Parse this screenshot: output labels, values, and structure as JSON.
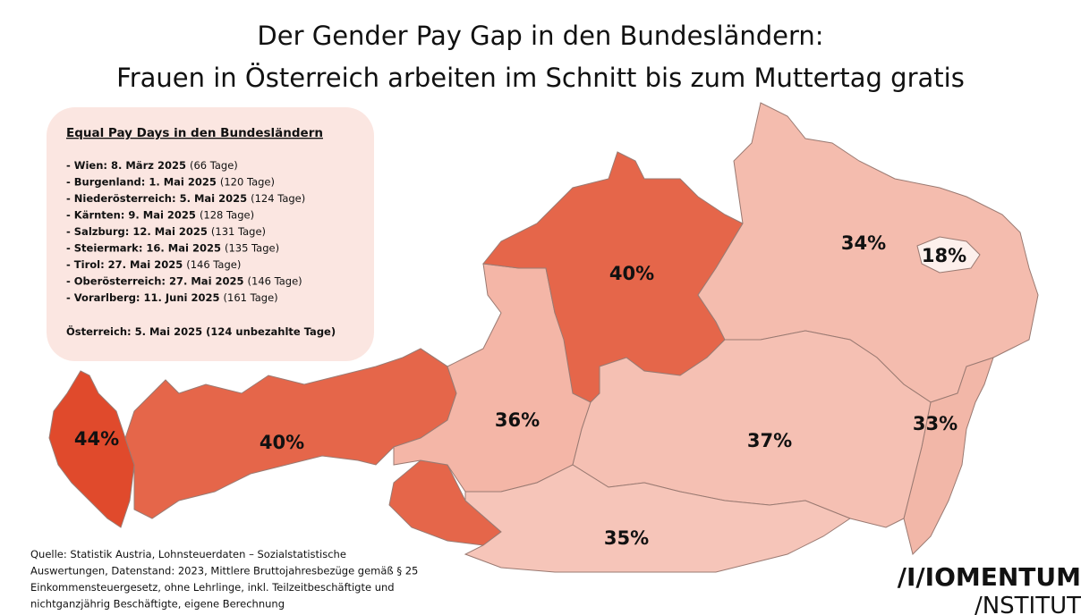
{
  "header": {
    "title_line1": "Der Gender Pay Gap in den Bundesländern:",
    "title_line2": "Frauen in Österreich arbeiten im Schnitt bis zum Muttertag gratis"
  },
  "legend": {
    "heading": "Equal Pay Days in den Bundesländern",
    "items": [
      {
        "date": "- Wien: 8. März 2025",
        "days": "(66 Tage)"
      },
      {
        "date": "- Burgenland: 1. Mai 2025",
        "days": "(120 Tage)"
      },
      {
        "date": "- Niederösterreich: 5. Mai 2025",
        "days": "(124 Tage)"
      },
      {
        "date": "- Kärnten: 9. Mai 2025",
        "days": "(128 Tage)"
      },
      {
        "date": "- Salzburg: 12. Mai 2025",
        "days": "(131 Tage)"
      },
      {
        "date": "- Steiermark: 16. Mai 2025",
        "days": "(135 Tage)"
      },
      {
        "date": "- Tirol: 27. Mai 2025",
        "days": "(146 Tage)"
      },
      {
        "date": "- Oberösterreich: 27. Mai 2025",
        "days": "(146 Tage)"
      },
      {
        "date": "- Vorarlberg: 11. Juni 2025",
        "days": "(161 Tage)"
      }
    ],
    "total": "Österreich: 5. Mai 2025 (124 unbezahlte Tage)"
  },
  "map": {
    "regions": [
      {
        "label": "44%",
        "color": "#e04a2c"
      },
      {
        "label": "40%",
        "color": "#e5664a"
      },
      {
        "label": "36%",
        "color": "#f4b6a7"
      },
      {
        "label": "40%",
        "color": "#e5664a"
      },
      {
        "label": "34%",
        "color": "#f4bcae"
      },
      {
        "label": "18%",
        "color": "#fdf0ec"
      },
      {
        "label": "33%",
        "color": "#f2b7a8"
      },
      {
        "label": "37%",
        "color": "#f5c0b3"
      },
      {
        "label": "35%",
        "color": "#f6c5b9"
      }
    ]
  },
  "source": [
    "Quelle: Statistik Austria, Lohnsteuerdaten – Sozialstatistische",
    "Auswertungen, Datenstand: 2023, Mittlere Bruttojahresbezüge gemäß § 25",
    "Einkommensteuergesetz, ohne Lehrlinge, inkl. Teilzeitbeschäftigte und",
    "nichtganzjährig Beschäftigte, eigene Berechnung"
  ],
  "logo": {
    "line1": "/I/IOMENTUM",
    "line2": "/NSTITUT"
  }
}
